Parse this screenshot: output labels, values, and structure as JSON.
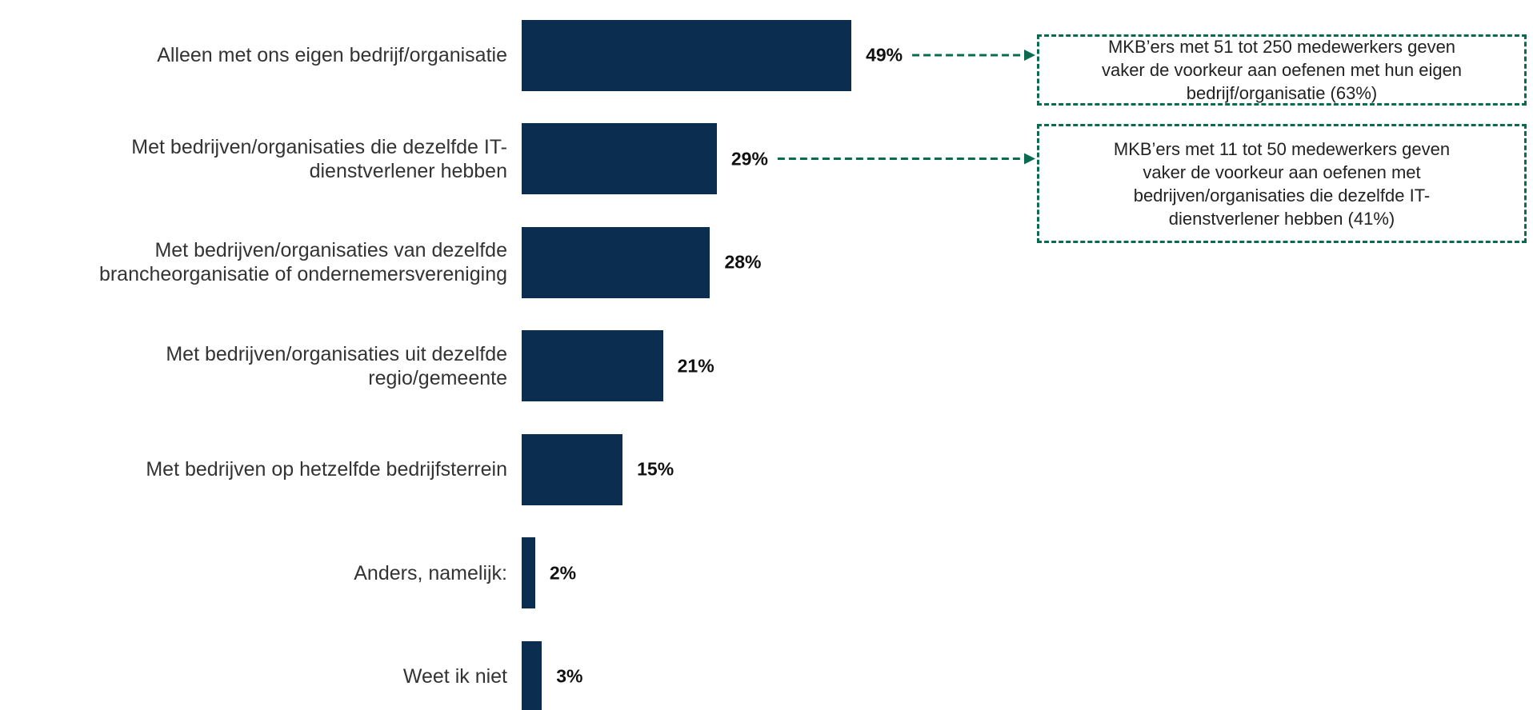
{
  "chart_data": {
    "type": "bar",
    "orientation": "horizontal",
    "categories": [
      "Alleen met ons eigen bedrijf/organisatie",
      "Met bedrijven/organisaties die dezelfde IT-\ndienstverlener hebben",
      "Met bedrijven/organisaties van dezelfde\nbrancheorganisatie of ondernemersvereniging",
      "Met bedrijven/organisaties uit dezelfde\nregio/gemeente",
      "Met bedrijven op hetzelfde bedrijfsterrein",
      "Anders, namelijk:",
      "Weet ik niet"
    ],
    "values": [
      49,
      29,
      28,
      21,
      15,
      2,
      3
    ],
    "value_labels": [
      "49%",
      "29%",
      "28%",
      "21%",
      "15%",
      "2%",
      "3%"
    ],
    "color": "#0b2d4f",
    "annotations": [
      "MKB’ers met 51 tot 250 medewerkers geven\nvaker de voorkeur aan oefenen met hun eigen\nbedrijf/organisatie (63%)",
      "MKB’ers met 11 tot 50 medewerkers geven\nvaker de voorkeur aan oefenen met\nbedrijven/organisaties die dezelfde IT-\ndienstverlener hebben (41%)"
    ],
    "annotation_color": "#0b6b50"
  }
}
